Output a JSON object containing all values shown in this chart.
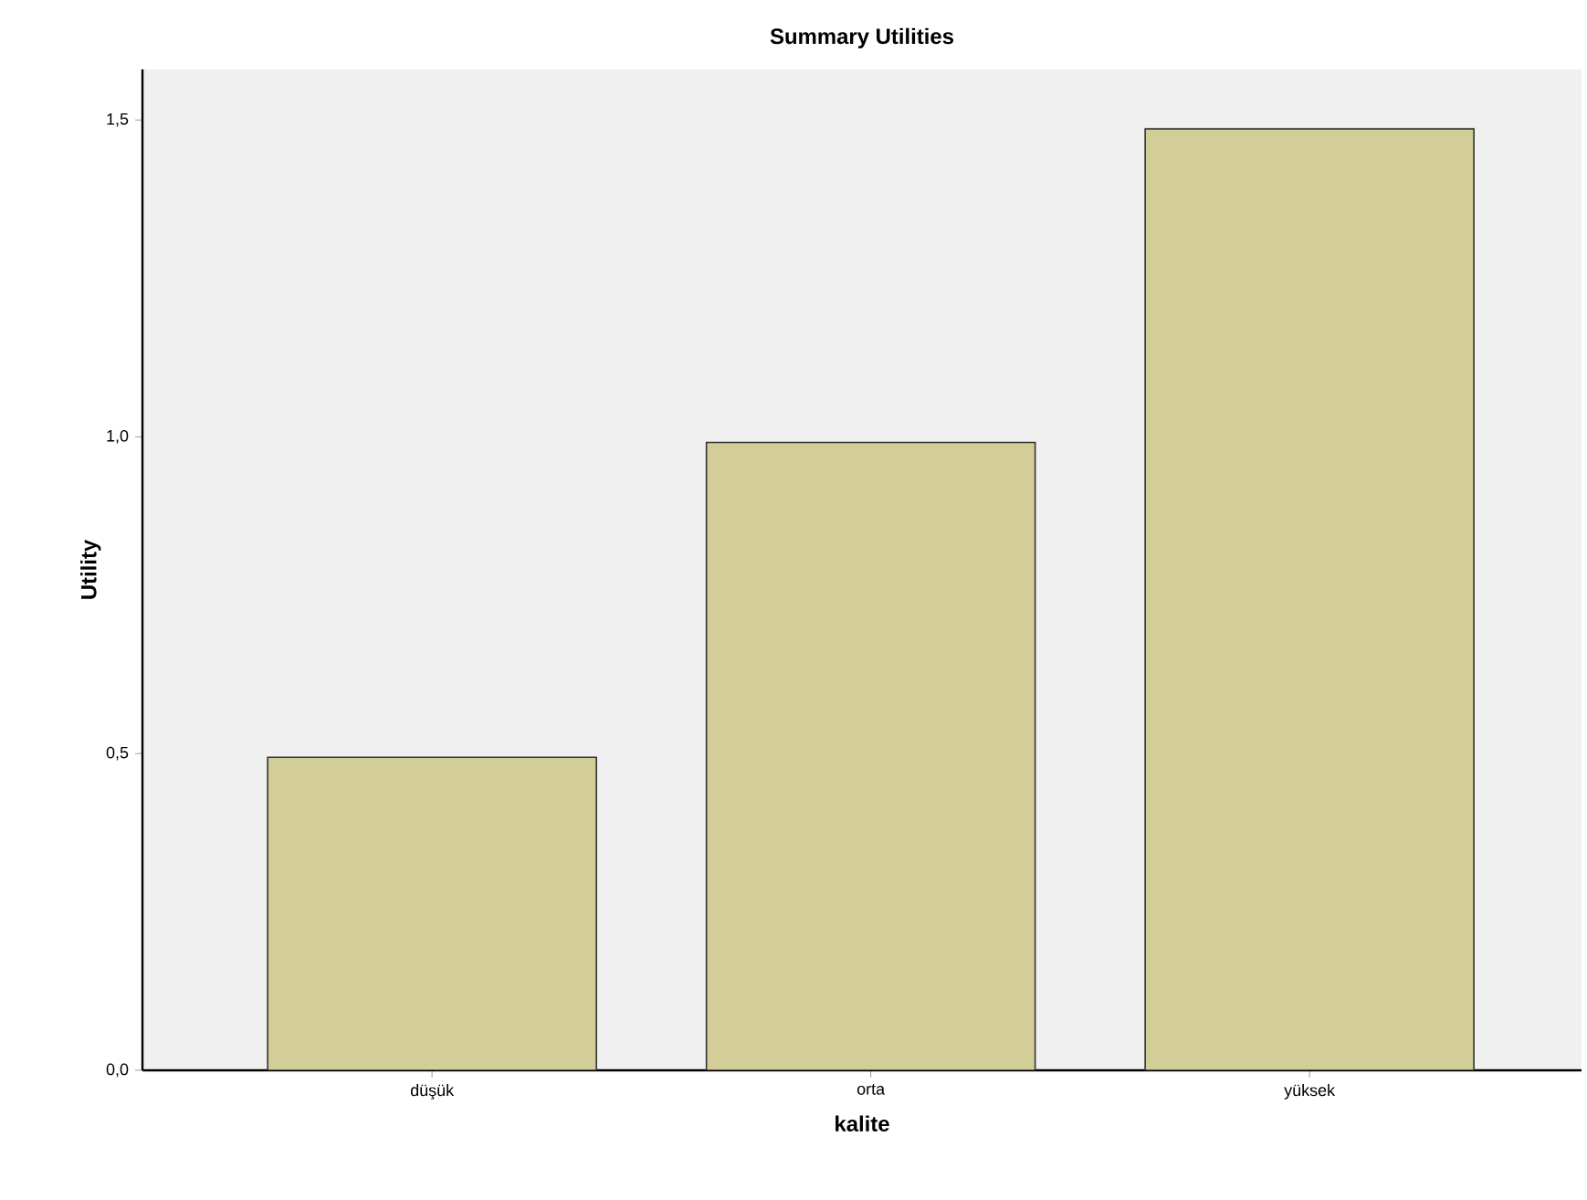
{
  "chart_data": {
    "type": "bar",
    "title": "Summary Utilities",
    "xlabel": "kalite",
    "ylabel": "Utility",
    "categories": [
      "düşük",
      "orta",
      "yüksek"
    ],
    "values": [
      0.494,
      0.991,
      1.486
    ],
    "color": "#d3ce97",
    "ylim": [
      0,
      1.58
    ],
    "yticks": [
      {
        "value": 0,
        "label": "0,0"
      },
      {
        "value": 0.5,
        "label": "0,5"
      },
      {
        "value": 1,
        "label": "1,0"
      },
      {
        "value": 1.5,
        "label": "1,5"
      }
    ]
  }
}
